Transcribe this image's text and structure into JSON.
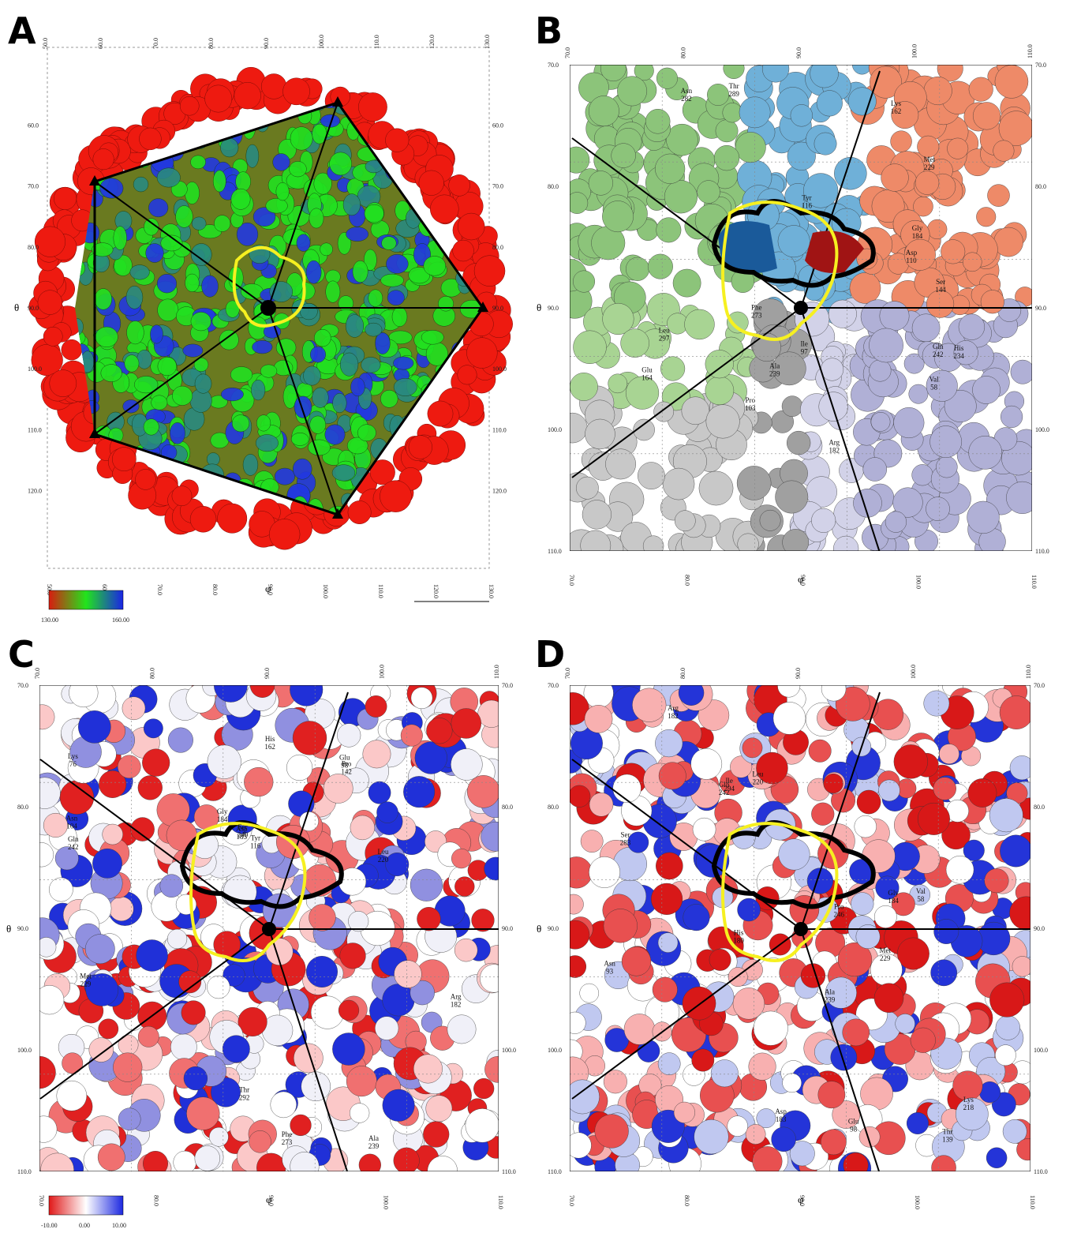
{
  "panels": [
    {
      "letter": "A",
      "theta_label": "θ",
      "phi_label": "φ",
      "theta_ticks": [
        "60.0",
        "70.0",
        "80.0",
        "90.0",
        "100.0",
        "110.0",
        "120.0"
      ],
      "phi_ticks": [
        "50.0",
        "60.0",
        "70.0",
        "80.0",
        "90.0",
        "100.0",
        "110.0",
        "120.0",
        "130.0"
      ],
      "colorbar": {
        "min": "130.00",
        "max": "160.00"
      },
      "residues": []
    },
    {
      "letter": "B",
      "theta_label": "θ",
      "phi_label": "φ",
      "theta_ticks": [
        "70.0",
        "80.0",
        "90.0",
        "100.0",
        "110.0"
      ],
      "phi_ticks": [
        "70.0",
        "80.0",
        "90.0",
        "100.0",
        "110.0"
      ],
      "residues": [
        {
          "name": "Leu",
          "num": "297"
        },
        {
          "name": "Gly",
          "num": "184"
        },
        {
          "name": "Ser",
          "num": "144"
        },
        {
          "name": "Phe",
          "num": "273"
        },
        {
          "name": "Thr",
          "num": "289"
        },
        {
          "name": "Asn",
          "num": "282"
        },
        {
          "name": "Glu",
          "num": "164"
        },
        {
          "name": "Gln",
          "num": "242"
        },
        {
          "name": "Asp",
          "num": "110"
        },
        {
          "name": "Lys",
          "num": "162"
        },
        {
          "name": "Met",
          "num": "229"
        },
        {
          "name": "Ala",
          "num": "239"
        },
        {
          "name": "Arg",
          "num": "182"
        },
        {
          "name": "Pro",
          "num": "103"
        },
        {
          "name": "His",
          "num": "234"
        },
        {
          "name": "Tyr",
          "num": "116"
        },
        {
          "name": "Val",
          "num": "58"
        },
        {
          "name": "Ile",
          "num": "97"
        }
      ]
    },
    {
      "letter": "C",
      "theta_label": "θ",
      "phi_label": "φ",
      "theta_ticks": [
        "70.0",
        "80.0",
        "90.0",
        "100.0",
        "110.0"
      ],
      "phi_ticks": [
        "70.0",
        "80.0",
        "90.0",
        "100.0",
        "110.0"
      ],
      "colorbar": {
        "min": "-10.00",
        "mid": "0.00",
        "max": "10.00"
      },
      "residues": [
        {
          "name": "Thr",
          "num": "292"
        },
        {
          "name": "Asp",
          "num": "183"
        },
        {
          "name": "Gly",
          "num": "184"
        },
        {
          "name": "Leu",
          "num": "220"
        },
        {
          "name": "Met",
          "num": "229"
        },
        {
          "name": "Gln",
          "num": "242"
        },
        {
          "name": "Ala",
          "num": "239"
        },
        {
          "name": "Ser",
          "num": "240"
        },
        {
          "name": "Glu",
          "num": "98"
        },
        {
          "name": "Pro",
          "num": "142"
        },
        {
          "name": "Arg",
          "num": "182"
        },
        {
          "name": "Asn",
          "num": "104"
        },
        {
          "name": "Lys",
          "num": "76"
        },
        {
          "name": "His",
          "num": "162"
        },
        {
          "name": "Phe",
          "num": "273"
        },
        {
          "name": "Tyr",
          "num": "116"
        }
      ]
    },
    {
      "letter": "D",
      "theta_label": "θ",
      "phi_label": "φ",
      "theta_ticks": [
        "70.0",
        "80.0",
        "90.0",
        "100.0",
        "110.0"
      ],
      "phi_ticks": [
        "70.0",
        "80.0",
        "90.0",
        "100.0",
        "110.0"
      ],
      "residues": [
        {
          "name": "Ile",
          "num": "294"
        },
        {
          "name": "Val",
          "num": "58"
        },
        {
          "name": "Thr",
          "num": "139"
        },
        {
          "name": "Glu",
          "num": "98"
        },
        {
          "name": "Gln",
          "num": "242"
        },
        {
          "name": "Leu",
          "num": "220"
        },
        {
          "name": "Asp",
          "num": "183"
        },
        {
          "name": "Lys",
          "num": "218"
        },
        {
          "name": "Ser",
          "num": "283"
        },
        {
          "name": "Arg",
          "num": "182"
        },
        {
          "name": "Asn",
          "num": "93"
        },
        {
          "name": "Pro",
          "num": "246"
        },
        {
          "name": "Ala",
          "num": "239"
        },
        {
          "name": "His",
          "num": "180"
        },
        {
          "name": "Met",
          "num": "229"
        },
        {
          "name": "Gly",
          "num": "184"
        }
      ]
    }
  ]
}
